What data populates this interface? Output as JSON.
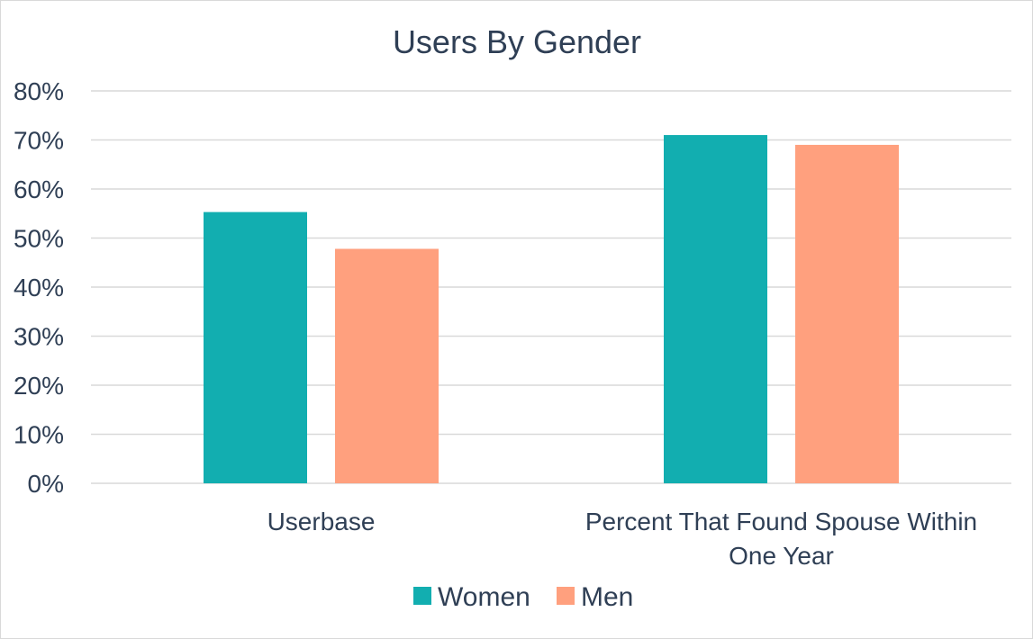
{
  "chart_data": {
    "type": "bar",
    "title": "Users By Gender",
    "categories": [
      "Userbase",
      "Percent That Found Spouse Within One Year"
    ],
    "category_lines": [
      [
        "Userbase"
      ],
      [
        "Percent That Found Spouse Within",
        "One Year"
      ]
    ],
    "series": [
      {
        "name": "Women",
        "color": "#12AEB0",
        "values": [
          55.3,
          71.0
        ]
      },
      {
        "name": "Men",
        "color": "#FFA07E",
        "values": [
          47.8,
          69.0
        ]
      }
    ],
    "y_ticks": [
      "0%",
      "10%",
      "20%",
      "30%",
      "40%",
      "50%",
      "60%",
      "70%",
      "80%"
    ],
    "ylim": [
      0,
      80
    ],
    "y_unit": "%",
    "grid": true,
    "legend": "bottom"
  }
}
